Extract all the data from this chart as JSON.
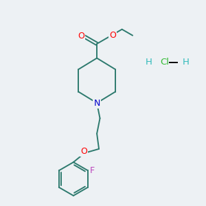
{
  "background_color": "#edf1f4",
  "bond_color": "#2d7a6e",
  "atom_colors": {
    "O": "#ff0000",
    "N": "#0000cc",
    "F": "#bb44bb",
    "Cl": "#33bb33",
    "H": "#33bbbb"
  },
  "lw": 1.4,
  "fontsize": 9.5
}
